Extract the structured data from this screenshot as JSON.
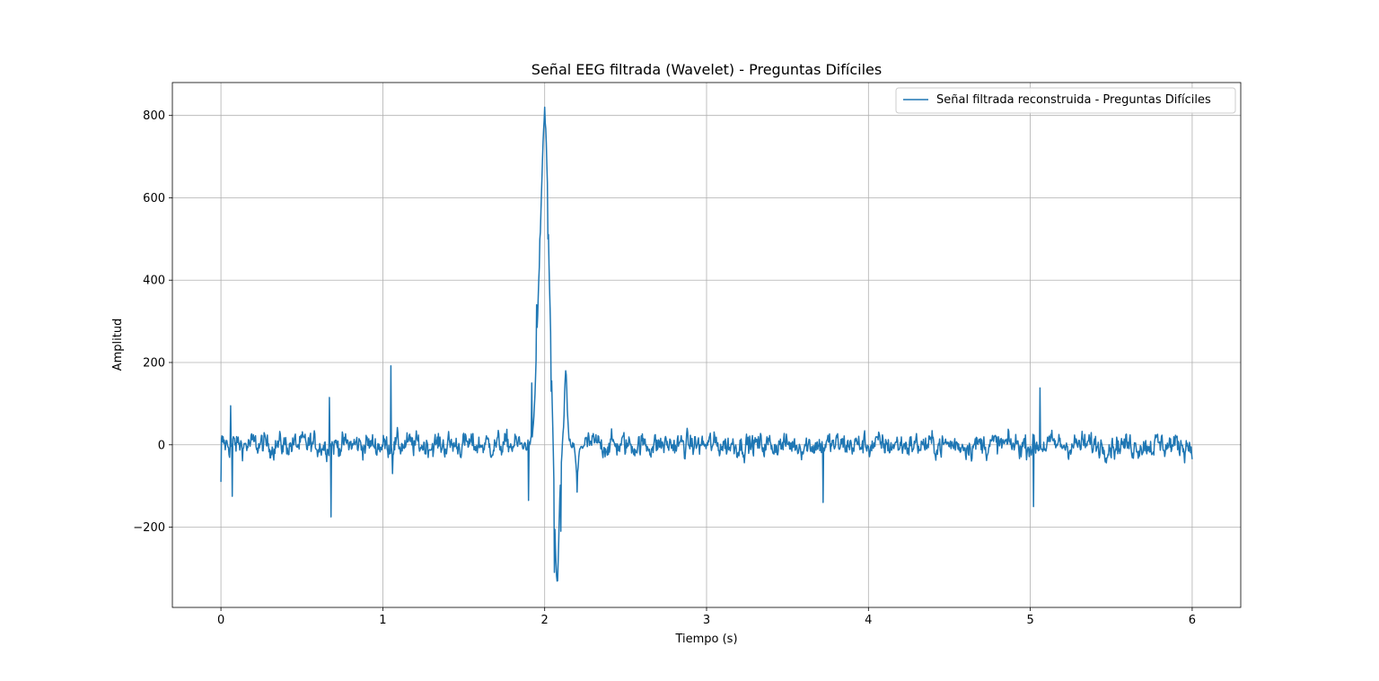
{
  "chart_data": {
    "type": "line",
    "title": "Señal EEG filtrada (Wavelet) - Preguntas Difíciles",
    "xlabel": "Tiempo (s)",
    "ylabel": "Amplitud",
    "xlim": [
      -0.3,
      6.3
    ],
    "ylim": [
      -395,
      880
    ],
    "xticks": [
      0,
      1,
      2,
      3,
      4,
      5,
      6
    ],
    "xtick_labels": [
      "0",
      "1",
      "2",
      "3",
      "4",
      "5",
      "6"
    ],
    "yticks": [
      -200,
      0,
      200,
      400,
      600,
      800
    ],
    "ytick_labels": [
      "−200",
      "0",
      "200",
      "400",
      "600",
      "800"
    ],
    "grid": true,
    "legend_position": "upper-right",
    "line_color": "#1f77b4",
    "series": [
      {
        "name": "Señal filtrada reconstruida - Preguntas Difíciles",
        "sampling": "noisy baseline ±50 with transient events",
        "x_range": [
          0,
          6
        ],
        "events": [
          {
            "x": 0.0,
            "y": -90
          },
          {
            "x": 0.06,
            "y": 95
          },
          {
            "x": 0.07,
            "y": -125
          },
          {
            "x": 0.67,
            "y": 115
          },
          {
            "x": 0.68,
            "y": -175
          },
          {
            "x": 1.05,
            "y": 192
          },
          {
            "x": 1.06,
            "y": -70
          },
          {
            "x": 1.9,
            "y": -135
          },
          {
            "x": 1.92,
            "y": 150
          },
          {
            "x": 1.95,
            "y": 340
          },
          {
            "x": 1.97,
            "y": 500
          },
          {
            "x": 2.0,
            "y": 820
          },
          {
            "x": 2.02,
            "y": 500
          },
          {
            "x": 2.04,
            "y": 130
          },
          {
            "x": 2.06,
            "y": -310
          },
          {
            "x": 2.08,
            "y": -330
          },
          {
            "x": 2.1,
            "y": -210
          },
          {
            "x": 2.13,
            "y": 180
          },
          {
            "x": 2.2,
            "y": -115
          },
          {
            "x": 3.72,
            "y": -140
          },
          {
            "x": 5.02,
            "y": -150
          },
          {
            "x": 5.06,
            "y": 138
          },
          {
            "x": 6.0,
            "y": -35
          }
        ]
      }
    ]
  }
}
